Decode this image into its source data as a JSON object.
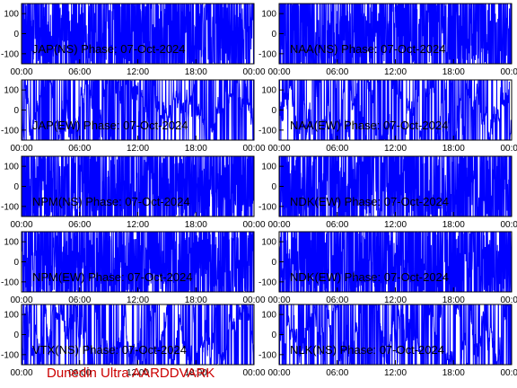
{
  "footer": "Dunedin Ultra AARDDVARK",
  "colors": {
    "trace": "#0000ff",
    "axes": "#000000",
    "footer": "#cc0000"
  },
  "chart_data": [
    {
      "type": "line",
      "title": "JAP(NS) Phase: 07-Oct-2024",
      "ylim": [
        -150,
        150
      ],
      "yticks": [
        "100",
        "0",
        "-100"
      ],
      "xticks": [
        "00:00",
        "06:00",
        "12:00",
        "18:00",
        "00:00"
      ],
      "seed": 11,
      "style": "dense"
    },
    {
      "type": "line",
      "title": "NAA(NS) Phase: 07-Oct-2024",
      "ylim": [
        -150,
        150
      ],
      "yticks": [
        "100",
        "0",
        "-100"
      ],
      "xticks": [
        "00:00",
        "06:00",
        "12:00",
        "18:00",
        "00:00"
      ],
      "seed": 23,
      "style": "dense"
    },
    {
      "type": "line",
      "title": "JAP(EW) Phase: 07-Oct-2024",
      "ylim": [
        -150,
        150
      ],
      "yticks": [
        "100",
        "0",
        "-100"
      ],
      "xticks": [
        "00:00",
        "06:00",
        "12:00",
        "18:00",
        "00:00"
      ],
      "seed": 37,
      "style": "mixed"
    },
    {
      "type": "line",
      "title": "NAA(EW) Phase: 07-Oct-2024",
      "ylim": [
        -150,
        150
      ],
      "yticks": [
        "100",
        "0",
        "-100"
      ],
      "xticks": [
        "00:00",
        "06:00",
        "12:00",
        "18:00",
        "00:00"
      ],
      "seed": 41,
      "style": "mixed"
    },
    {
      "type": "line",
      "title": "NPM(NS) Phase: 07-Oct-2024",
      "ylim": [
        -150,
        150
      ],
      "yticks": [
        "100",
        "0",
        "-100"
      ],
      "xticks": [
        "00:00",
        "06:00",
        "12:00",
        "18:00",
        "00:00"
      ],
      "seed": 53,
      "style": "dense"
    },
    {
      "type": "line",
      "title": "NDK(EW) Phase: 07-Oct-2024",
      "ylim": [
        -150,
        150
      ],
      "yticks": [
        "100",
        "0",
        "-100"
      ],
      "xticks": [
        "00:00",
        "06:00",
        "12:00",
        "18:00",
        "00:00"
      ],
      "seed": 67,
      "style": "dense"
    },
    {
      "type": "line",
      "title": "NPM(EW) Phase: 07-Oct-2024",
      "ylim": [
        -150,
        150
      ],
      "yticks": [
        "100",
        "0",
        "-100"
      ],
      "xticks": [
        "00:00",
        "06:00",
        "12:00",
        "18:00",
        "00:00"
      ],
      "seed": 71,
      "style": "dense"
    },
    {
      "type": "line",
      "title": "NDK(EW) Phase: 07-Oct-2024",
      "ylim": [
        -150,
        150
      ],
      "yticks": [
        "100",
        "0",
        "-100"
      ],
      "xticks": [
        "00:00",
        "06:00",
        "12:00",
        "18:00",
        "00:00"
      ],
      "seed": 83,
      "style": "dense"
    },
    {
      "type": "line",
      "title": "VTX(NS) Phase: 07-Oct-2024",
      "ylim": [
        -150,
        150
      ],
      "yticks": [
        "100",
        "0",
        "-100"
      ],
      "xticks": [
        "00:00",
        "06:00",
        "12:00",
        "18:00",
        "00:00"
      ],
      "seed": 97,
      "style": "mixed"
    },
    {
      "type": "line",
      "title": "NLK(NS) Phase: 07-Oct-2024",
      "ylim": [
        -150,
        150
      ],
      "yticks": [
        "100",
        "0",
        "-100"
      ],
      "xticks": [
        "00:00",
        "06:00",
        "12:00",
        "18:00",
        "00:00"
      ],
      "seed": 101,
      "style": "mixed"
    }
  ]
}
